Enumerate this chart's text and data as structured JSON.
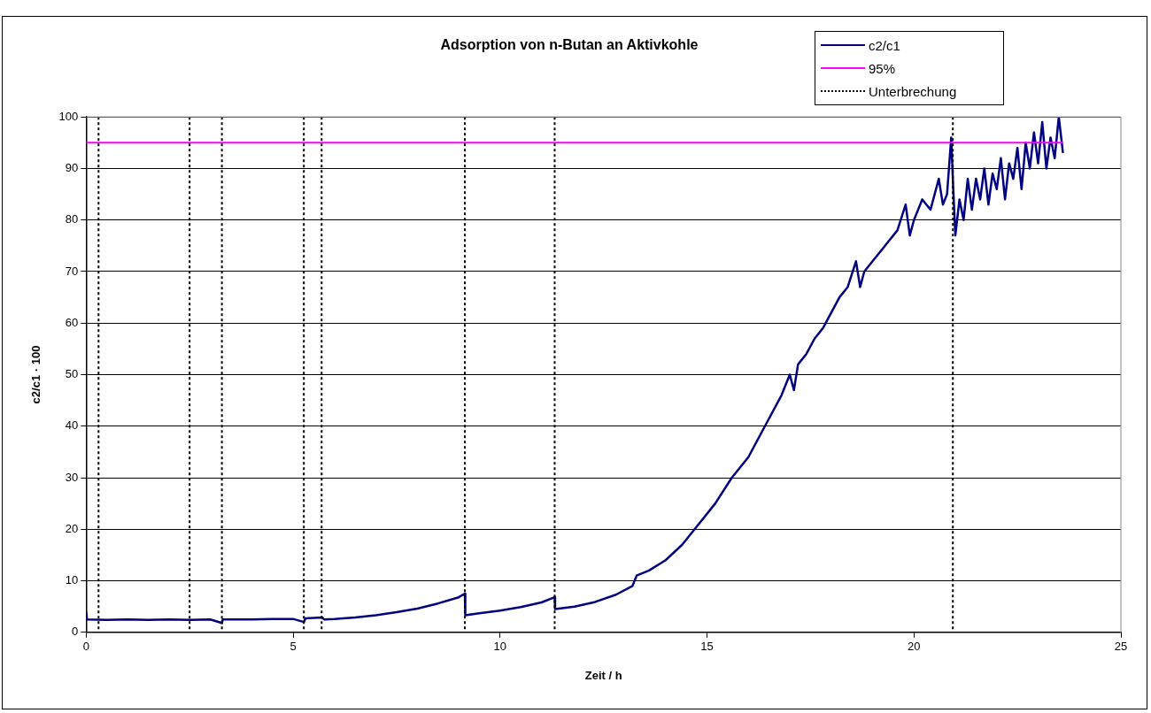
{
  "chart_data": {
    "type": "line",
    "title": "Adsorption von n-Butan an Aktivkohle",
    "xlabel": "Zeit / h",
    "ylabel": "c2/c1 · 100",
    "xlim": [
      0,
      25
    ],
    "xticks": [
      0,
      5,
      10,
      15,
      20,
      25
    ],
    "ylim": [
      0,
      100
    ],
    "yticks": [
      0,
      10,
      20,
      30,
      40,
      50,
      60,
      70,
      80,
      90,
      100
    ],
    "grid": "y",
    "legend": "top right",
    "marker": "none",
    "series": [
      {
        "name": "c2/c1",
        "color": "#000080",
        "x": [
          0,
          0.02,
          0.5,
          1,
          1.5,
          2,
          2.5,
          3,
          3.28,
          3.3,
          4,
          4.5,
          5,
          5.26,
          5.3,
          5.7,
          5.75,
          6,
          6.5,
          7,
          7.5,
          8,
          8.5,
          9,
          9.15,
          9.16,
          9.5,
          10,
          10.5,
          11,
          11.32,
          11.33,
          11.8,
          12.3,
          12.8,
          13.2,
          13.3,
          13.6,
          14,
          14.4,
          14.8,
          15.2,
          15.6,
          16,
          16.4,
          16.8,
          17,
          17.1,
          17.2,
          17.4,
          17.6,
          17.8,
          18,
          18.2,
          18.4,
          18.6,
          18.7,
          18.8,
          19,
          19.2,
          19.4,
          19.6,
          19.8,
          19.9,
          20,
          20.2,
          20.4,
          20.6,
          20.7,
          20.8,
          20.9,
          20.95,
          21,
          21.1,
          21.2,
          21.3,
          21.4,
          21.5,
          21.6,
          21.7,
          21.8,
          21.9,
          22,
          22.1,
          22.2,
          22.3,
          22.4,
          22.5,
          22.6,
          22.7,
          22.8,
          22.9,
          23,
          23.1,
          23.2,
          23.3,
          23.4,
          23.5,
          23.6
        ],
        "values": [
          4,
          2.5,
          2.4,
          2.5,
          2.4,
          2.5,
          2.4,
          2.5,
          1.8,
          2.5,
          2.5,
          2.6,
          2.6,
          2,
          2.7,
          2.9,
          2.5,
          2.6,
          2.9,
          3.3,
          3.9,
          4.6,
          5.6,
          6.8,
          7.5,
          3.3,
          3.7,
          4.2,
          4.9,
          5.8,
          6.8,
          4.5,
          5,
          5.9,
          7.3,
          9,
          11,
          12,
          14,
          17,
          21,
          25,
          30,
          34,
          40,
          46,
          50,
          47,
          52,
          54,
          57,
          59,
          62,
          65,
          67,
          72,
          67,
          70,
          72,
          74,
          76,
          78,
          83,
          77,
          80,
          84,
          82,
          88,
          83,
          85,
          96,
          86,
          77,
          84,
          80,
          88,
          82,
          88,
          84,
          90,
          83,
          89,
          86,
          92,
          84,
          91,
          88,
          94,
          86,
          95,
          90,
          97,
          91,
          99,
          90,
          96,
          92,
          100,
          93
        ]
      },
      {
        "name": "95%",
        "color": "#ff00ff",
        "x": [
          0,
          23.6
        ],
        "values": [
          95,
          95
        ]
      }
    ],
    "ref_lines": [
      {
        "axis": "x",
        "value": 0.3,
        "label": "Unterbrechung",
        "color": "#000000",
        "line_style": "dotted"
      },
      {
        "axis": "x",
        "value": 2.5,
        "color": "#000000",
        "line_style": "dotted"
      },
      {
        "axis": "x",
        "value": 3.28,
        "color": "#000000",
        "line_style": "dotted"
      },
      {
        "axis": "x",
        "value": 5.26,
        "color": "#000000",
        "line_style": "dotted"
      },
      {
        "axis": "x",
        "value": 5.69,
        "color": "#000000",
        "line_style": "dotted"
      },
      {
        "axis": "x",
        "value": 9.15,
        "color": "#000000",
        "line_style": "dotted"
      },
      {
        "axis": "x",
        "value": 11.32,
        "color": "#000000",
        "line_style": "dotted"
      },
      {
        "axis": "x",
        "value": 20.94,
        "color": "#000000",
        "line_style": "dotted"
      }
    ]
  }
}
